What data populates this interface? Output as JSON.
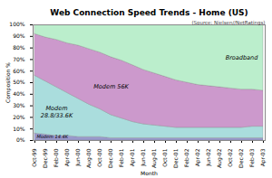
{
  "chart_data": {
    "type": "area",
    "stacked": true,
    "title": "Web Connection Speed Trends - Home (US)",
    "annotations": [
      "(Source: Nielsen//NetRatings)"
    ],
    "xlabel": "Month",
    "ylabel": "Composition %",
    "categories": [
      "Oct-99",
      "Dec-99",
      "Feb-00",
      "Apr-00",
      "Jun-00",
      "Aug-00",
      "Oct-00",
      "Dec-00",
      "Feb-01",
      "Apr-01",
      "Jun-01",
      "Aug-01",
      "Oct-01",
      "Dec-01",
      "Feb-02",
      "Apr-02",
      "Jun-02",
      "Aug-02",
      "Oct-02",
      "Dec-02",
      "Feb-03",
      "Apr-03"
    ],
    "series": [
      {
        "name": "Modem 14.4K",
        "color": "#9999cc",
        "values": [
          6,
          5,
          4,
          4,
          3,
          3,
          3,
          2,
          2,
          2,
          2,
          2,
          2,
          2,
          2,
          2,
          2,
          2,
          2,
          2,
          2,
          2
        ]
      },
      {
        "name": "Modem\n28.8/33.6K",
        "color": "#aadddd",
        "values": [
          50,
          46,
          42,
          37,
          33,
          28,
          24,
          20,
          17,
          14,
          12,
          11,
          10,
          9,
          9,
          9,
          9,
          9,
          9,
          9,
          10,
          10
        ]
      },
      {
        "name": "Modem 56K",
        "color": "#cc99cc",
        "values": [
          36,
          38,
          41,
          43,
          46,
          48,
          49,
          50,
          50,
          49,
          47,
          45,
          43,
          41,
          39,
          37,
          36,
          35,
          34,
          33,
          32,
          31
        ]
      },
      {
        "name": "Broadband",
        "color": "#bbeecc",
        "values": [
          8,
          11,
          13,
          16,
          18,
          21,
          24,
          28,
          31,
          35,
          39,
          42,
          45,
          48,
          50,
          52,
          53,
          54,
          55,
          56,
          56,
          57
        ]
      }
    ],
    "ylim": [
      0,
      100
    ],
    "yticks": [
      {
        "value": 0,
        "label": "0%"
      },
      {
        "value": 10,
        "label": "10%"
      },
      {
        "value": 20,
        "label": "20%"
      },
      {
        "value": 30,
        "label": "30%"
      },
      {
        "value": 40,
        "label": "40%"
      },
      {
        "value": 50,
        "label": "50%"
      },
      {
        "value": 60,
        "label": "60%"
      },
      {
        "value": 70,
        "label": "70%"
      },
      {
        "value": 80,
        "label": "80%"
      },
      {
        "value": 90,
        "label": "90%"
      },
      {
        "value": 100,
        "label": "100%"
      }
    ],
    "grid": false
  }
}
